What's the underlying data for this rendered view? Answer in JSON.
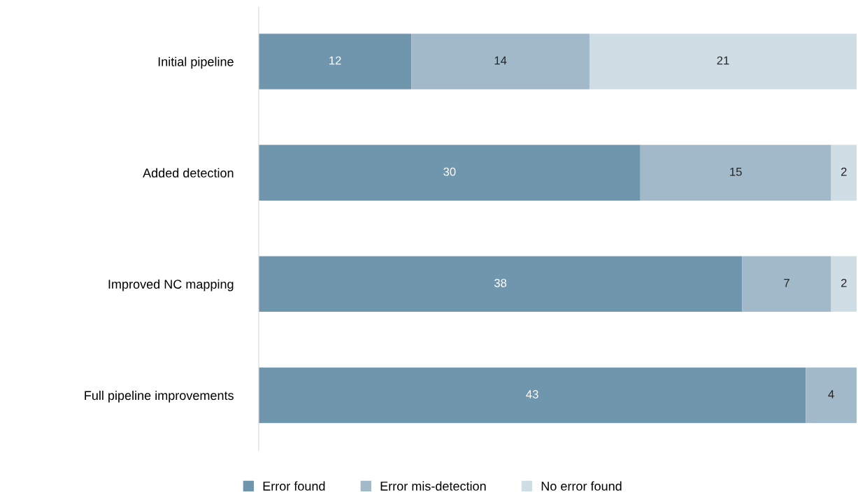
{
  "chart_data": {
    "type": "bar",
    "orientation": "horizontal",
    "stacked": true,
    "data_labels": true,
    "legend": "bottom",
    "grid": false,
    "tick_labels": "y",
    "xlim": [
      0,
      47
    ],
    "categories": [
      "Initial pipeline",
      "Added detection",
      "Improved NC mapping",
      "Full pipeline improvements"
    ],
    "series": [
      {
        "name": "Error found",
        "color": "#7096ae",
        "values": [
          12,
          30,
          38,
          43
        ]
      },
      {
        "name": "Error mis-detection",
        "color": "#a2b9c9",
        "values": [
          14,
          15,
          7,
          4
        ]
      },
      {
        "name": "No error found",
        "color": "#cfdde5",
        "values": [
          21,
          2,
          2,
          null
        ]
      }
    ]
  }
}
